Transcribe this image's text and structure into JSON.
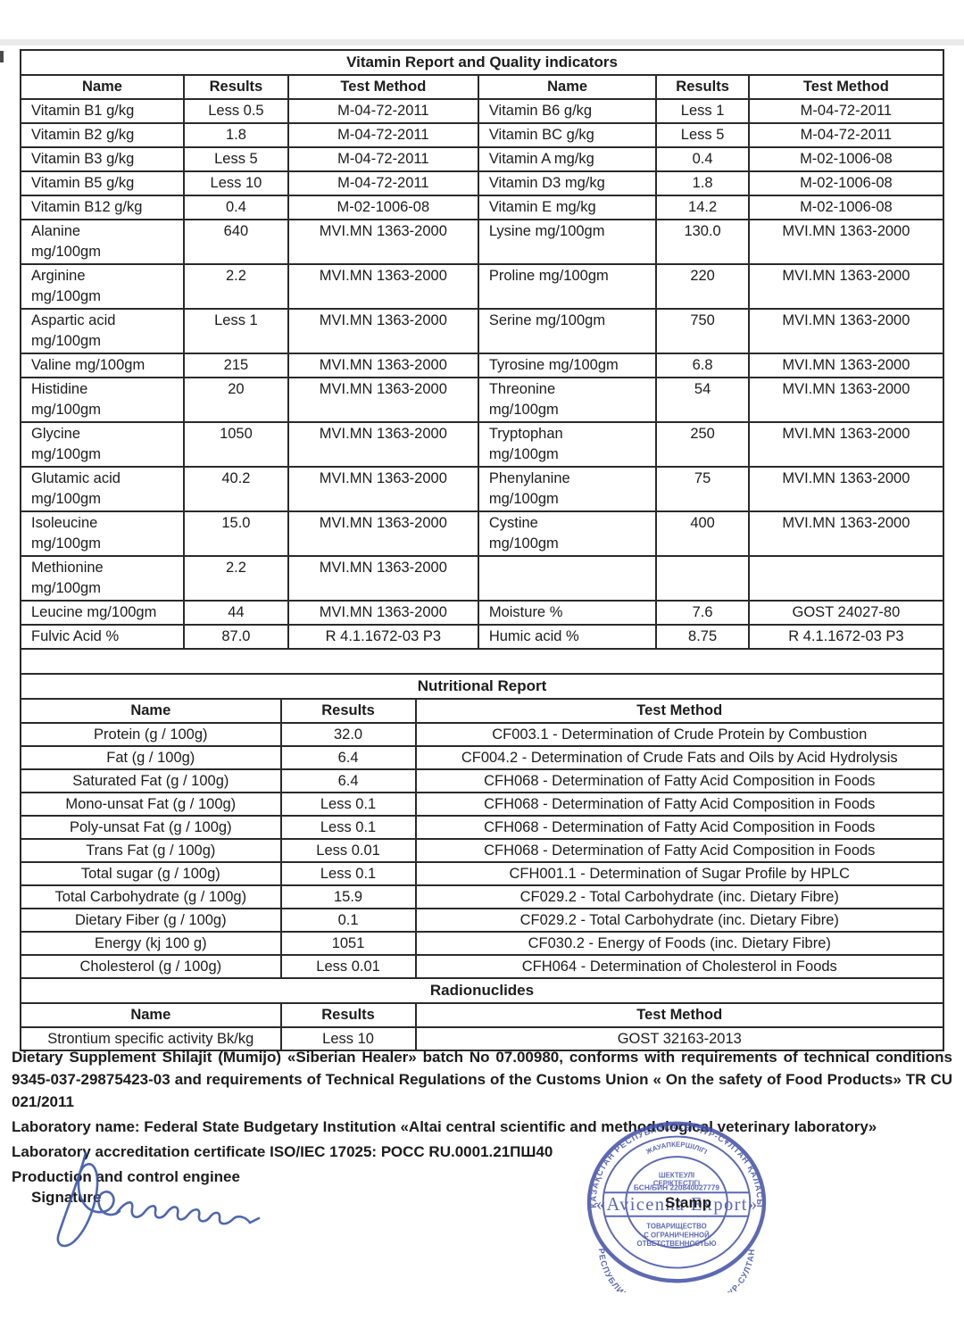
{
  "vitamin_table": {
    "title": "Vitamin Report and Quality indicators",
    "headers": [
      "Name",
      "Results",
      "Test Method",
      "Name",
      "Results",
      "Test Method"
    ],
    "rows": [
      [
        "Vitamin B1 g/kg",
        "Less 0.5",
        "M-04-72-2011",
        "Vitamin B6 g/kg",
        "Less 1",
        "M-04-72-2011"
      ],
      [
        "Vitamin B2 g/kg",
        "1.8",
        "M-04-72-2011",
        "Vitamin BC g/kg",
        "Less 5",
        "M-04-72-2011"
      ],
      [
        "Vitamin B3 g/kg",
        "Less 5",
        "M-04-72-2011",
        "Vitamin A mg/kg",
        "0.4",
        "M-02-1006-08"
      ],
      [
        "Vitamin B5 g/kg",
        "Less 10",
        "M-04-72-2011",
        "Vitamin D3 mg/kg",
        "1.8",
        "M-02-1006-08"
      ],
      [
        "Vitamin B12 g/kg",
        "0.4",
        "M-02-1006-08",
        "Vitamin E mg/kg",
        "14.2",
        "M-02-1006-08"
      ],
      [
        "Alanine\nmg/100gm",
        "640",
        "MVI.MN 1363-2000",
        "Lysine mg/100gm",
        "130.0",
        "MVI.MN 1363-2000"
      ],
      [
        "Arginine\nmg/100gm",
        "2.2",
        "MVI.MN 1363-2000",
        "Proline mg/100gm",
        "220",
        "MVI.MN 1363-2000"
      ],
      [
        "Aspartic acid\nmg/100gm",
        "Less 1",
        "MVI.MN 1363-2000",
        "Serine mg/100gm",
        "750",
        "MVI.MN 1363-2000"
      ],
      [
        "Valine mg/100gm",
        "215",
        "MVI.MN 1363-2000",
        "Tyrosine mg/100gm",
        "6.8",
        "MVI.MN 1363-2000"
      ],
      [
        "Histidine\nmg/100gm",
        "20",
        "MVI.MN 1363-2000",
        "Threonine\nmg/100gm",
        "54",
        "MVI.MN 1363-2000"
      ],
      [
        "Glycine\nmg/100gm",
        "1050",
        "MVI.MN 1363-2000",
        "Tryptophan\nmg/100gm",
        "250",
        "MVI.MN 1363-2000"
      ],
      [
        "Glutamic acid\nmg/100gm",
        "40.2",
        "MVI.MN 1363-2000",
        "Phenylanine\nmg/100gm",
        "75",
        "MVI.MN 1363-2000"
      ],
      [
        "Isoleucine\nmg/100gm",
        "15.0",
        "MVI.MN 1363-2000",
        "Cystine\nmg/100gm",
        "400",
        "MVI.MN 1363-2000"
      ],
      [
        "Methionine\nmg/100gm",
        "2.2",
        "MVI.MN 1363-2000",
        "",
        "",
        ""
      ],
      [
        "Leucine mg/100gm",
        "44",
        "MVI.MN 1363-2000",
        "Moisture %",
        "7.6",
        "GOST 24027-80"
      ],
      [
        "Fulvic Acid %",
        "87.0",
        "R 4.1.1672-03 P3",
        "Humic acid %",
        "8.75",
        "R 4.1.1672-03 P3"
      ]
    ]
  },
  "nutritional_table": {
    "title": "Nutritional Report",
    "headers": [
      "Name",
      "Results",
      "Test Method"
    ],
    "rows": [
      [
        "Protein (g / 100g)",
        "32.0",
        "CF003.1 - Determination of Crude Protein by Combustion"
      ],
      [
        "Fat (g / 100g)",
        "6.4",
        "CF004.2 - Determination of Crude Fats and Oils by Acid Hydrolysis"
      ],
      [
        "Saturated Fat (g / 100g)",
        "6.4",
        "CFH068 - Determination of Fatty Acid Composition in Foods"
      ],
      [
        "Mono-unsat Fat (g / 100g)",
        "Less 0.1",
        "CFH068 - Determination of Fatty Acid Composition in Foods"
      ],
      [
        "Poly-unsat Fat (g / 100g)",
        "Less 0.1",
        "CFH068 - Determination of Fatty Acid Composition in Foods"
      ],
      [
        "Trans Fat (g / 100g)",
        "Less 0.01",
        "CFH068 - Determination of Fatty Acid Composition in Foods"
      ],
      [
        "Total sugar (g / 100g)",
        "Less 0.1",
        "CFH001.1 - Determination of Sugar Profile by HPLC"
      ],
      [
        "Total Carbohydrate (g / 100g)",
        "15.9",
        "CF029.2 - Total Carbohydrate (inc. Dietary Fibre)"
      ],
      [
        "Dietary Fiber (g / 100g)",
        "0.1",
        "CF029.2 - Total Carbohydrate (inc. Dietary Fibre)"
      ],
      [
        "Energy (kj 100 g)",
        "1051",
        "CF030.2 - Energy of Foods (inc. Dietary Fibre)"
      ],
      [
        "Cholesterol (g / 100g)",
        "Less 0.01",
        "CFH064 - Determination of Cholesterol in Foods"
      ]
    ]
  },
  "radionuclides_table": {
    "title": "Radionuclides",
    "headers": [
      "Name",
      "Results",
      "Test Method"
    ],
    "rows": [
      [
        "Strontium specific activity Bk/kg",
        "Less 10",
        "GOST 32163-2013"
      ]
    ]
  },
  "footer": {
    "para1": "Dietary Supplement Shilajit (Mumijo) «Siberian Healer» batch No 07.00980, conforms with requirements of technical conditions 9345-037-29875423-03 and requirements of Technical Regulations of the Customs Union « On the safety of Food Products» TR CU 021/2011",
    "lab_name": "Laboratory name: Federal State Budgetary Institution «Altai central scientific and methodological veterinary laboratory»",
    "accreditation": "Laboratory accreditation certificate ISO/IEC 17025: РОСС RU.0001.21ПШ40",
    "engineer": "Production and control enginee",
    "signature_label": "Signature",
    "stamp_label": "Stamp"
  },
  "stamp": {
    "outer_top": "ҚАЗАҚСТАН РЕСПУБЛИКАСЫ НҰР-СҰЛТАН ҚАЛАСЫ",
    "outer_bottom": "РЕСПУБЛИКА КАЗАХСТАН ГОРОД НУР-СУЛТАН",
    "inner_line1": "ЖАУАПКЕРШІЛІГІ",
    "inner_line2": "ШЕКТЕУЛІ",
    "inner_line3": "СЕРІКТЕСТІГІ",
    "bin": "БСН/БИН 220840027779",
    "company": "«Avicenna Export»",
    "bottom_line1": "ТОВАРИЩЕСТВО",
    "bottom_line2": "С ОГРАНИЧЕННОЙ",
    "bottom_line3": "ОТВЕТСТВЕННОСТЬЮ",
    "color": "#4150a5"
  },
  "colors": {
    "ink": "#1c1c1c",
    "border": "#2a2a2a",
    "stamp_blue": "#4150a5",
    "signature_blue": "#3b56a8"
  }
}
